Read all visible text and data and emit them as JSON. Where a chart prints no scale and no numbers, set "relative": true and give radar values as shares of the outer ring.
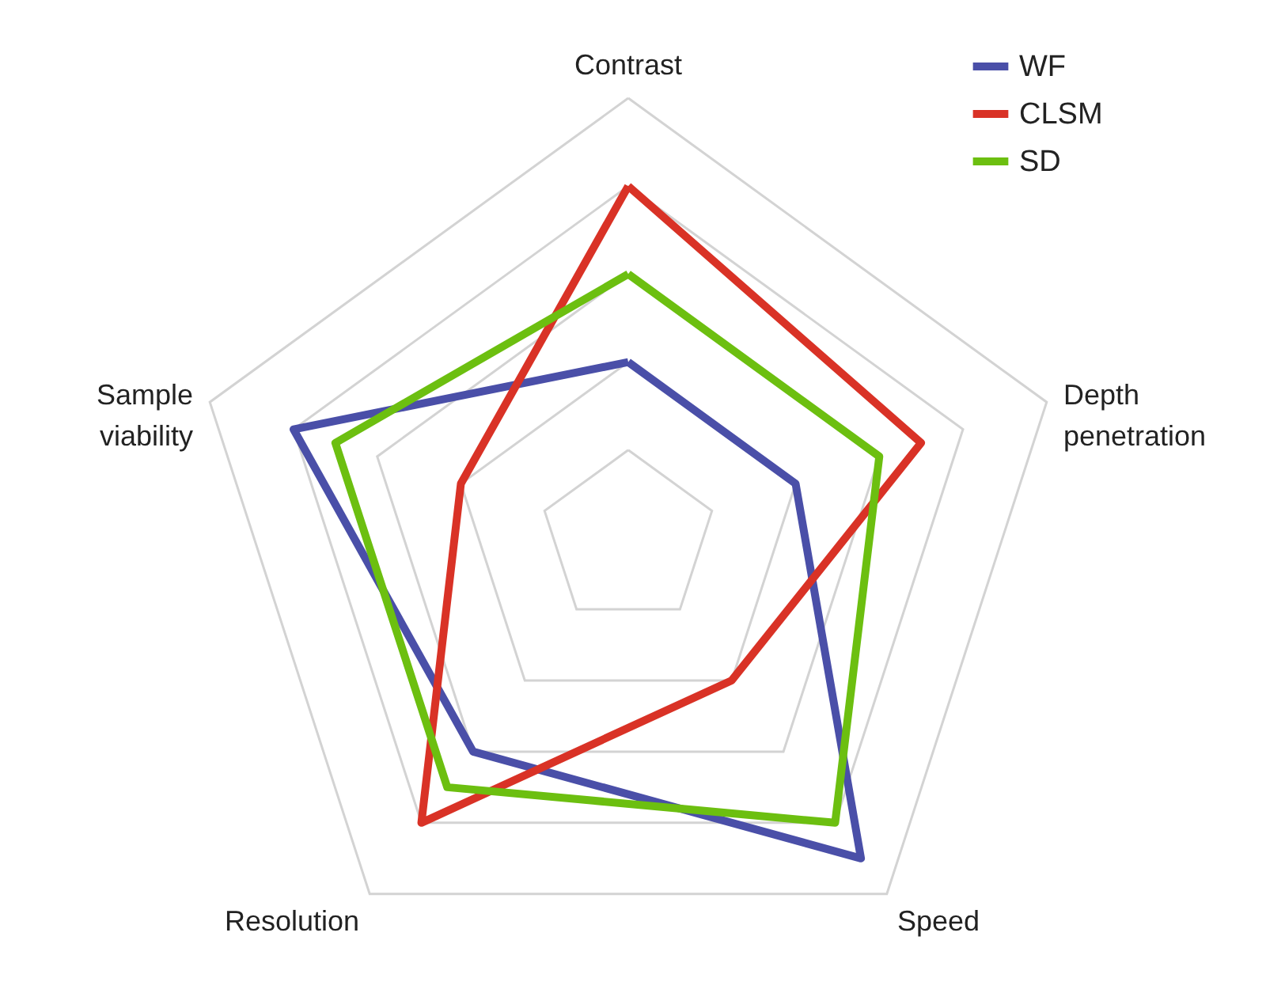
{
  "chart_data": {
    "type": "radar",
    "relative": true,
    "grid": true,
    "legend": "top right",
    "line_style": "solid",
    "marker": "none",
    "categories": [
      "Contrast",
      "Depth penetration",
      "Speed",
      "Resolution",
      "Sample viability"
    ],
    "series": [
      {
        "name": "WF",
        "color": "#4a4fa8",
        "values": [
          0.4,
          0.4,
          0.9,
          0.6,
          0.8
        ]
      },
      {
        "name": "CLSM",
        "color": "#d93226",
        "values": [
          0.8,
          0.7,
          0.4,
          0.8,
          0.4
        ]
      },
      {
        "name": "SD",
        "color": "#6cbf10",
        "values": [
          0.6,
          0.6,
          0.8,
          0.7,
          0.7
        ]
      }
    ]
  }
}
